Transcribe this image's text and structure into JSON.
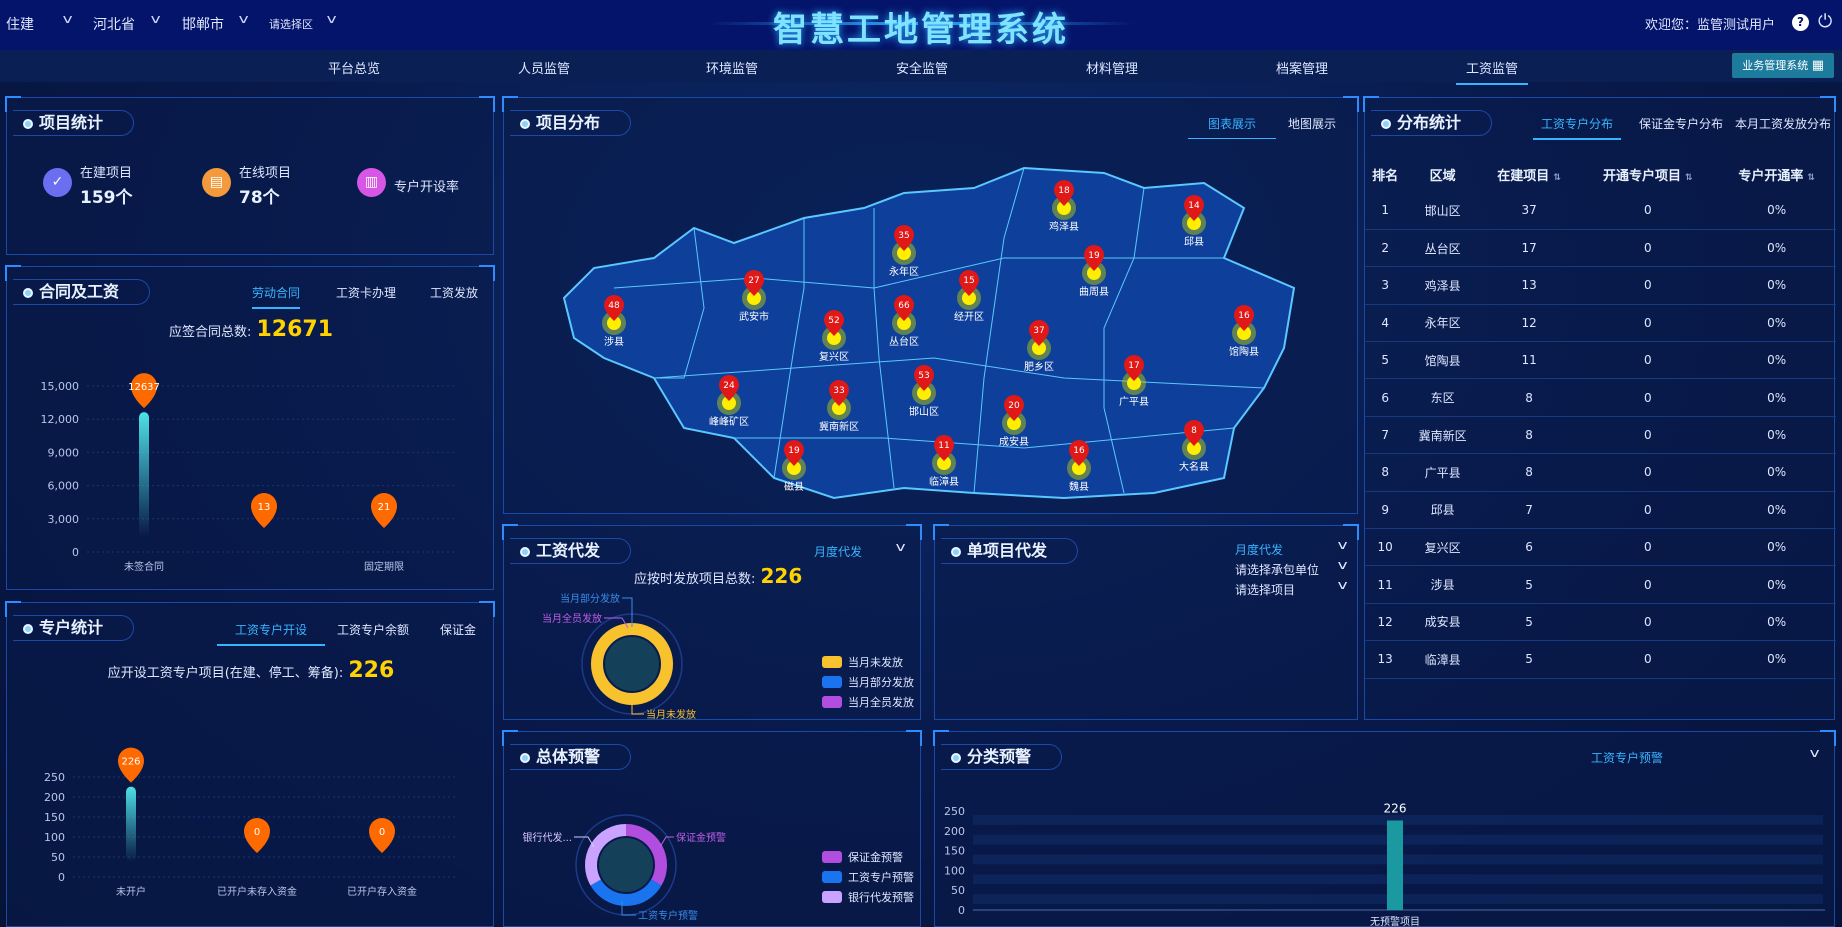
{
  "header": {
    "filters": [
      "住建",
      "河北省",
      "邯郸市",
      "请选择区"
    ],
    "title": "智慧工地管理系统",
    "welcome": "欢迎您：监管测试用户",
    "help_icon": "help-icon",
    "power_icon": "power-icon"
  },
  "nav": {
    "items": [
      "平台总览",
      "人员监管",
      "环境监管",
      "安全监管",
      "材料管理",
      "档案管理",
      "工资监管"
    ],
    "active": "工资监管",
    "biz_button": "业务管理系统"
  },
  "project_stats": {
    "title": "项目统计",
    "items": [
      {
        "label": "在建项目",
        "value": "159个",
        "color": "#6b6ef0"
      },
      {
        "label": "在线项目",
        "value": "78个",
        "color": "#f59a3c"
      },
      {
        "label": "专户开设率",
        "value": "",
        "color": "#d856e6"
      }
    ]
  },
  "contract": {
    "title": "合同及工资",
    "tabs": [
      "劳动合同",
      "工资卡办理",
      "工资发放"
    ],
    "total_label": "应签合同总数:",
    "total": "12671",
    "chart_data": {
      "type": "bar",
      "categories": [
        "未签合同",
        "",
        "固定期限"
      ],
      "values": [
        12637,
        13,
        21
      ],
      "ylim": [
        0,
        15000
      ],
      "yticks": [
        "0",
        "3,000",
        "6,000",
        "9,000",
        "12,000",
        "15,000"
      ],
      "labels": [
        "12637",
        "13",
        "21"
      ]
    }
  },
  "account": {
    "title": "专户统计",
    "tabs": [
      "工资专户开设",
      "工资专户余额",
      "保证金"
    ],
    "total_label": "应开设工资专户项目(在建、停工、筹备):",
    "total": "226",
    "chart_data": {
      "type": "bar",
      "categories": [
        "未开户",
        "已开户未存入资金",
        "已开户存入资金"
      ],
      "values": [
        226,
        0,
        0
      ],
      "ylim": [
        0,
        250
      ],
      "yticks": [
        "0",
        "50",
        "100",
        "150",
        "200",
        "250"
      ],
      "labels": [
        "226",
        "0",
        "0"
      ]
    }
  },
  "map": {
    "title": "项目分布",
    "tabs": [
      "图表展示",
      "地图展示"
    ],
    "regions": [
      {
        "name": "涉县",
        "value": 48
      },
      {
        "name": "武安市",
        "value": 27
      },
      {
        "name": "永年区",
        "value": 35
      },
      {
        "name": "复兴区",
        "value": 52
      },
      {
        "name": "丛台区",
        "value": 66
      },
      {
        "name": "经开区",
        "value": 15
      },
      {
        "name": "鸡泽县",
        "value": 18
      },
      {
        "name": "曲周县",
        "value": 19
      },
      {
        "name": "邱县",
        "value": 14
      },
      {
        "name": "馆陶县",
        "value": 16
      },
      {
        "name": "肥乡区",
        "value": 37
      },
      {
        "name": "邯山区",
        "value": 53
      },
      {
        "name": "广平县",
        "value": 17
      },
      {
        "name": "冀南新区",
        "value": 33
      },
      {
        "name": "峰峰矿区",
        "value": 24
      },
      {
        "name": "磁县",
        "value": 19
      },
      {
        "name": "成安县",
        "value": 20
      },
      {
        "name": "临漳县",
        "value": 11
      },
      {
        "name": "魏县",
        "value": 16
      },
      {
        "name": "大名县",
        "value": 8
      }
    ]
  },
  "wage": {
    "title": "工资代发",
    "select": "月度代发",
    "total_label": "应按时发放项目总数:",
    "total": "226",
    "chart_data": {
      "type": "pie",
      "slices": [
        {
          "name": "当月未发放",
          "value": 226,
          "color": "#f8c22e"
        },
        {
          "name": "当月部分发放",
          "value": 0,
          "color": "#1a74f0"
        },
        {
          "name": "当月全员发放",
          "value": 0,
          "color": "#b14ee0"
        }
      ]
    }
  },
  "single": {
    "title": "单项目代发",
    "selects": [
      "月度代发",
      "请选择承包单位",
      "请选择项目"
    ]
  },
  "overall": {
    "title": "总体预警",
    "slice_labels": [
      "银行代发...",
      "保证金预警",
      "工资专户预警"
    ],
    "chart_data": {
      "type": "pie",
      "slices": [
        {
          "name": "保证金预警",
          "value": 1,
          "color": "#b14ee0"
        },
        {
          "name": "工资专户预警",
          "value": 1,
          "color": "#1a74f0"
        },
        {
          "name": "银行代发预警",
          "value": 1,
          "color": "#c9a3ff"
        }
      ]
    }
  },
  "category": {
    "title": "分类预警",
    "select": "工资专户预警",
    "chart_data": {
      "type": "bar",
      "categories": [
        "无预警项目"
      ],
      "values": [
        226
      ],
      "ylim": [
        0,
        250
      ],
      "yticks": [
        "0",
        "50",
        "100",
        "150",
        "200",
        "250"
      ],
      "labels": [
        "226"
      ]
    }
  },
  "distribution": {
    "title": "分布统计",
    "tabs": [
      "工资专户分布",
      "保证金专户分布",
      "本月工资发放分布"
    ],
    "columns": [
      "排名",
      "区域",
      "在建项目",
      "开通专户项目",
      "专户开通率"
    ],
    "rows": [
      [
        "1",
        "邯山区",
        "37",
        "0",
        "0%"
      ],
      [
        "2",
        "丛台区",
        "17",
        "0",
        "0%"
      ],
      [
        "3",
        "鸡泽县",
        "13",
        "0",
        "0%"
      ],
      [
        "4",
        "永年区",
        "12",
        "0",
        "0%"
      ],
      [
        "5",
        "馆陶县",
        "11",
        "0",
        "0%"
      ],
      [
        "6",
        "东区",
        "8",
        "0",
        "0%"
      ],
      [
        "7",
        "冀南新区",
        "8",
        "0",
        "0%"
      ],
      [
        "8",
        "广平县",
        "8",
        "0",
        "0%"
      ],
      [
        "9",
        "邱县",
        "7",
        "0",
        "0%"
      ],
      [
        "10",
        "复兴区",
        "6",
        "0",
        "0%"
      ],
      [
        "11",
        "涉县",
        "5",
        "0",
        "0%"
      ],
      [
        "12",
        "成安县",
        "5",
        "0",
        "0%"
      ],
      [
        "13",
        "临漳县",
        "5",
        "0",
        "0%"
      ]
    ]
  }
}
